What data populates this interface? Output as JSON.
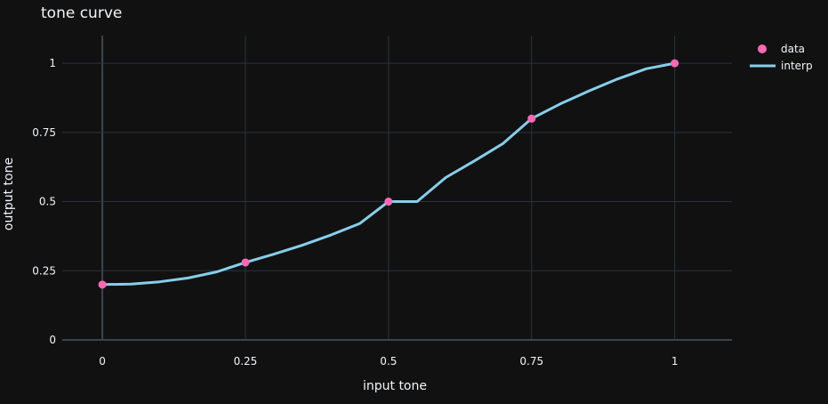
{
  "chart_data": {
    "type": "line",
    "title": "tone curve",
    "xlabel": "input tone",
    "ylabel": "output tone",
    "xlim": [
      -0.07,
      1.1
    ],
    "ylim": [
      0,
      1.1
    ],
    "x_ticks": [
      0,
      0.25,
      0.5,
      0.75,
      1
    ],
    "x_tick_labels": [
      "0",
      "0.25",
      "0.5",
      "0.75",
      "1"
    ],
    "y_ticks": [
      0,
      0.25,
      0.5,
      0.75,
      1
    ],
    "y_tick_labels": [
      "0",
      "0.25",
      "0.5",
      "0.75",
      "1"
    ],
    "grid": true,
    "legend_position": "top-right",
    "series": [
      {
        "name": "data",
        "mode": "markers",
        "color": "#ff69b4",
        "x": [
          0,
          0.25,
          0.5,
          0.75,
          1
        ],
        "y": [
          0.2,
          0.28,
          0.5,
          0.8,
          1
        ]
      },
      {
        "name": "interp",
        "mode": "lines",
        "color": "#87ceeb",
        "x": [
          0,
          0.05,
          0.1,
          0.15,
          0.2,
          0.25,
          0.3,
          0.35,
          0.4,
          0.45,
          0.5,
          0.55,
          0.6,
          0.65,
          0.7,
          0.75,
          0.8,
          0.85,
          0.9,
          0.95,
          1
        ],
        "y": [
          0.2,
          0.202,
          0.21,
          0.224,
          0.246,
          0.28,
          0.31,
          0.343,
          0.38,
          0.421,
          0.5,
          0.5,
          0.587,
          0.647,
          0.71,
          0.8,
          0.853,
          0.9,
          0.943,
          0.98,
          1
        ]
      }
    ]
  }
}
